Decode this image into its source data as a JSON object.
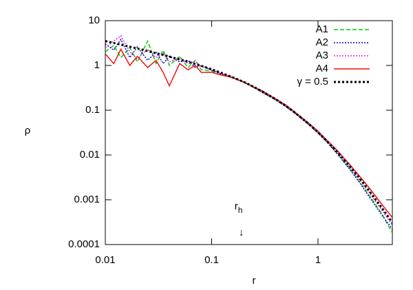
{
  "chart_data": {
    "type": "line",
    "x_label": "r",
    "y_label": "ρ",
    "log_x": true,
    "log_y": true,
    "grid": false,
    "legend": "upper right",
    "xlim": [
      0.01,
      5
    ],
    "ylim": [
      0.0001,
      10
    ],
    "xticks": [
      0.01,
      0.1,
      1
    ],
    "yticks": [
      0.0001,
      0.001,
      0.01,
      0.1,
      1,
      10
    ],
    "annotations": [
      {
        "text": "r",
        "subscript": "h",
        "arrow": "↓",
        "x": 0.19
      }
    ],
    "x": [
      0.01,
      0.012,
      0.014,
      0.017,
      0.02,
      0.025,
      0.03,
      0.035,
      0.04,
      0.05,
      0.06,
      0.07,
      0.08,
      0.1,
      0.12,
      0.15,
      0.2,
      0.25,
      0.3,
      0.4,
      0.5,
      0.6,
      0.8,
      1,
      1.2,
      1.5,
      2,
      2.5,
      3,
      4,
      5
    ],
    "series": [
      {
        "name": "A1",
        "color": "#00cc00",
        "style": "dashed",
        "values": [
          2.0,
          2.8,
          1.5,
          2.5,
          1.2,
          3.5,
          1.1,
          2.2,
          1.0,
          1.6,
          0.9,
          1.3,
          0.8,
          0.75,
          0.62,
          0.55,
          0.42,
          0.32,
          0.25,
          0.17,
          0.12,
          0.088,
          0.05,
          0.031,
          0.02,
          0.011,
          0.0048,
          0.0024,
          0.0013,
          0.00048,
          0.00018
        ]
      },
      {
        "name": "A2",
        "color": "#0000cc",
        "style": "dotted",
        "values": [
          3.0,
          2.2,
          3.8,
          1.5,
          2.6,
          1.3,
          2.0,
          1.1,
          1.6,
          1.2,
          1.3,
          0.9,
          1.0,
          0.78,
          0.66,
          0.56,
          0.42,
          0.32,
          0.25,
          0.17,
          0.12,
          0.087,
          0.05,
          0.031,
          0.02,
          0.011,
          0.0047,
          0.0023,
          0.0012,
          0.00045,
          0.00022
        ]
      },
      {
        "name": "A3",
        "color": "#dd22dd",
        "style": "dotted",
        "values": [
          2.5,
          3.5,
          4.6,
          2.0,
          1.4,
          2.3,
          1.5,
          1.9,
          1.2,
          1.5,
          1.1,
          1.25,
          0.95,
          0.8,
          0.68,
          0.57,
          0.43,
          0.33,
          0.26,
          0.175,
          0.125,
          0.09,
          0.052,
          0.032,
          0.021,
          0.012,
          0.0053,
          0.0027,
          0.0015,
          0.00058,
          0.00027
        ]
      },
      {
        "name": "A4",
        "color": "#ee1111",
        "style": "solid",
        "values": [
          1.8,
          1.1,
          2.3,
          1.0,
          1.6,
          0.9,
          1.3,
          0.7,
          0.35,
          1.1,
          0.8,
          1.0,
          0.7,
          0.7,
          0.62,
          0.55,
          0.43,
          0.33,
          0.27,
          0.18,
          0.13,
          0.093,
          0.054,
          0.034,
          0.022,
          0.013,
          0.006,
          0.0032,
          0.0019,
          0.00078,
          0.0004
        ]
      },
      {
        "name": "γ = 0.5",
        "color": "#000000",
        "style": "thick-dotted",
        "values": [
          3.5,
          3.17,
          2.91,
          2.62,
          2.39,
          2.1,
          1.88,
          1.72,
          1.58,
          1.36,
          1.21,
          1.08,
          0.98,
          0.82,
          0.7,
          0.57,
          0.43,
          0.33,
          0.26,
          0.176,
          0.124,
          0.09,
          0.0517,
          0.032,
          0.0209,
          0.012,
          0.0055,
          0.00286,
          0.00163,
          0.00065,
          0.00031
        ]
      }
    ]
  }
}
